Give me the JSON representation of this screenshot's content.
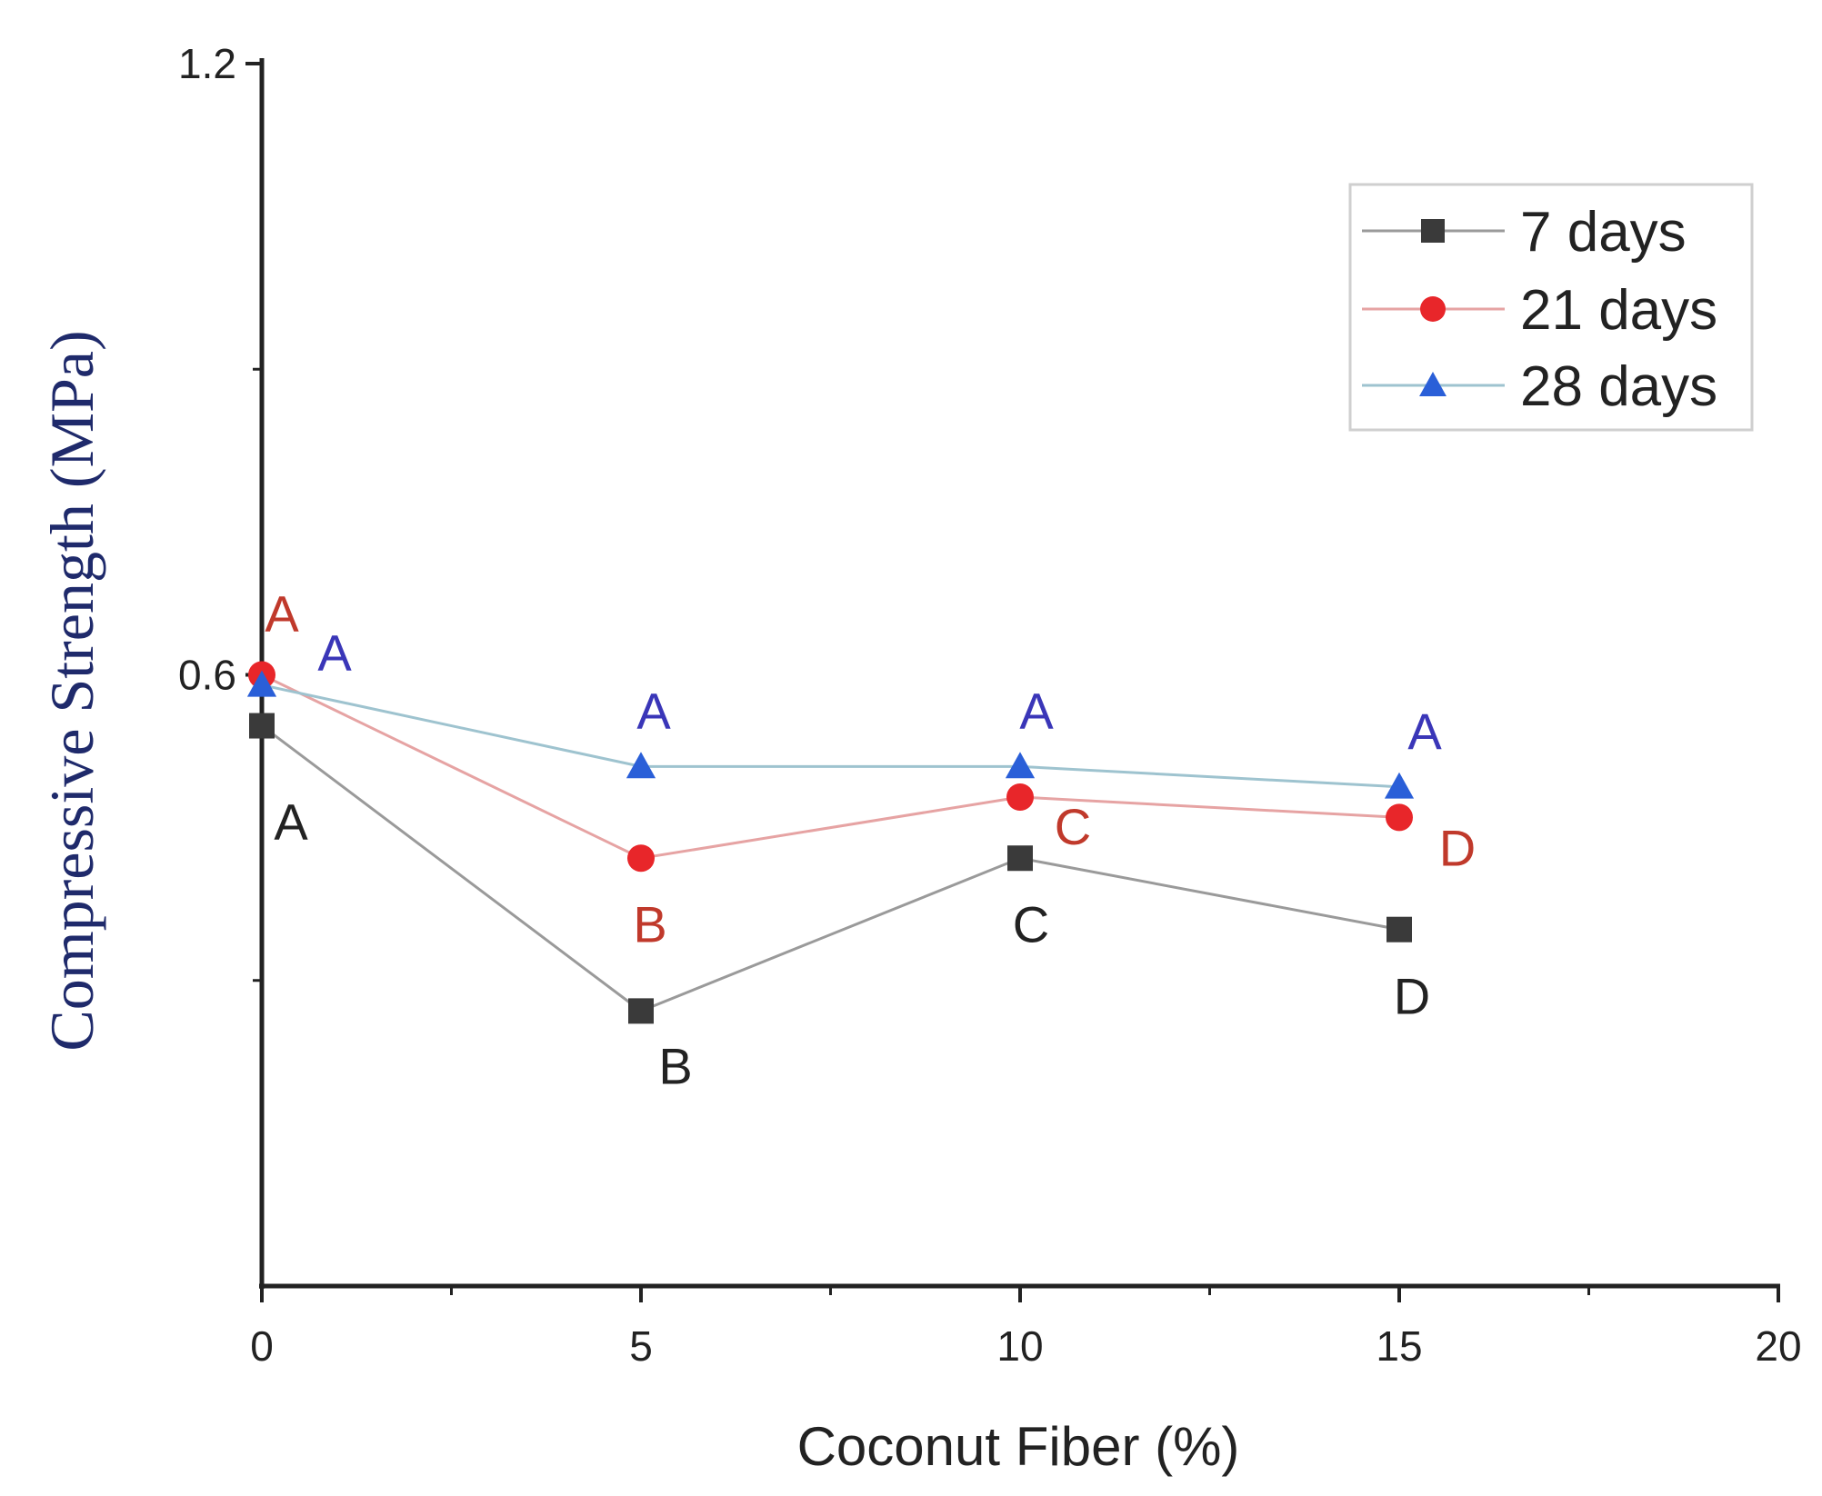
{
  "chart_data": {
    "type": "line",
    "title": "",
    "xlabel": "Coconut Fiber (%)",
    "ylabel": "Compressive Strength (MPa)",
    "xlim": [
      0,
      20
    ],
    "ylim": [
      0,
      1.2
    ],
    "x_ticks": [
      {
        "value": 0,
        "label": "0"
      },
      {
        "value": 5,
        "label": "5"
      },
      {
        "value": 10,
        "label": "10"
      },
      {
        "value": 15,
        "label": "15"
      },
      {
        "value": 20,
        "label": "20"
      }
    ],
    "x_minor_ticks": [
      2.5,
      7.5,
      12.5,
      17.5
    ],
    "y_ticks": [
      {
        "value": 0.6,
        "label": "0.6"
      },
      {
        "value": 1.2,
        "label": "1.2"
      }
    ],
    "y_minor_ticks": [
      0.3,
      0.9
    ],
    "grid": false,
    "legend_position": "top-right",
    "series": [
      {
        "name": "7 days",
        "marker": "square",
        "color": "#3a3a3a",
        "line_color": "#9a9a9a",
        "label_color": "#222222",
        "x": [
          0,
          5,
          10,
          15
        ],
        "values": [
          0.55,
          0.27,
          0.42,
          0.35
        ],
        "group_labels": [
          "A",
          "B",
          "C",
          "D"
        ]
      },
      {
        "name": "21 days",
        "marker": "circle",
        "color": "#e8262a",
        "line_color": "#e6a3a3",
        "label_color": "#c0392b",
        "x": [
          0,
          5,
          10,
          15
        ],
        "values": [
          0.6,
          0.42,
          0.48,
          0.46
        ],
        "group_labels": [
          "A",
          "B",
          "C",
          "D"
        ]
      },
      {
        "name": "28 days",
        "marker": "triangle",
        "color": "#2a5fd8",
        "line_color": "#9ec3cf",
        "label_color": "#3a36b8",
        "x": [
          0,
          5,
          10,
          15
        ],
        "values": [
          0.59,
          0.51,
          0.51,
          0.49
        ],
        "group_labels": [
          "A",
          "A",
          "A",
          "A"
        ]
      }
    ]
  }
}
